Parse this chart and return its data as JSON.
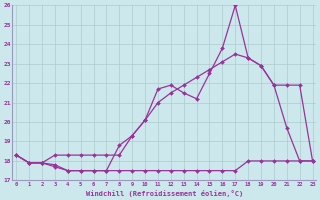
{
  "line1_x": [
    0,
    1,
    2,
    3,
    4,
    5,
    6,
    7,
    8,
    9,
    10,
    11,
    12,
    13,
    14,
    15,
    16,
    17,
    18,
    19,
    20,
    21,
    22,
    23
  ],
  "line1_y": [
    18.3,
    17.9,
    17.9,
    17.7,
    17.5,
    17.5,
    17.5,
    17.5,
    17.5,
    17.5,
    17.5,
    17.5,
    17.5,
    17.5,
    17.5,
    17.5,
    17.5,
    17.5,
    18.0,
    18.0,
    18.0,
    18.0,
    18.0,
    18.0
  ],
  "line2_x": [
    0,
    1,
    2,
    3,
    4,
    5,
    6,
    7,
    8,
    9,
    10,
    11,
    12,
    13,
    14,
    15,
    16,
    17,
    18,
    19,
    20,
    21,
    22,
    23
  ],
  "line2_y": [
    18.3,
    17.9,
    17.9,
    17.8,
    17.5,
    17.5,
    17.5,
    17.5,
    18.8,
    19.3,
    20.1,
    21.7,
    21.9,
    21.5,
    21.2,
    22.5,
    23.8,
    26.0,
    23.3,
    22.9,
    21.9,
    21.9,
    21.9,
    18.0
  ],
  "line3_x": [
    0,
    1,
    2,
    3,
    4,
    5,
    6,
    7,
    8,
    9,
    10,
    11,
    12,
    13,
    14,
    15,
    16,
    17,
    18,
    19,
    20,
    21,
    22,
    23
  ],
  "line3_y": [
    18.3,
    17.9,
    17.9,
    18.3,
    18.3,
    18.3,
    18.3,
    18.3,
    18.3,
    19.3,
    20.1,
    21.0,
    21.5,
    21.9,
    22.3,
    22.7,
    23.1,
    23.5,
    23.3,
    22.9,
    21.9,
    19.7,
    18.0,
    18.0
  ],
  "xlabel": "Windchill (Refroidissement éolien,°C)",
  "ylim": [
    17,
    26
  ],
  "xlim": [
    0,
    23
  ],
  "yticks": [
    17,
    18,
    19,
    20,
    21,
    22,
    23,
    24,
    25,
    26
  ],
  "xticks": [
    0,
    1,
    2,
    3,
    4,
    5,
    6,
    7,
    8,
    9,
    10,
    11,
    12,
    13,
    14,
    15,
    16,
    17,
    18,
    19,
    20,
    21,
    22,
    23
  ],
  "bg_color": "#cce8ec",
  "line_color": "#993399",
  "grid_color": "#aacccc",
  "spine_color": "#9999bb"
}
